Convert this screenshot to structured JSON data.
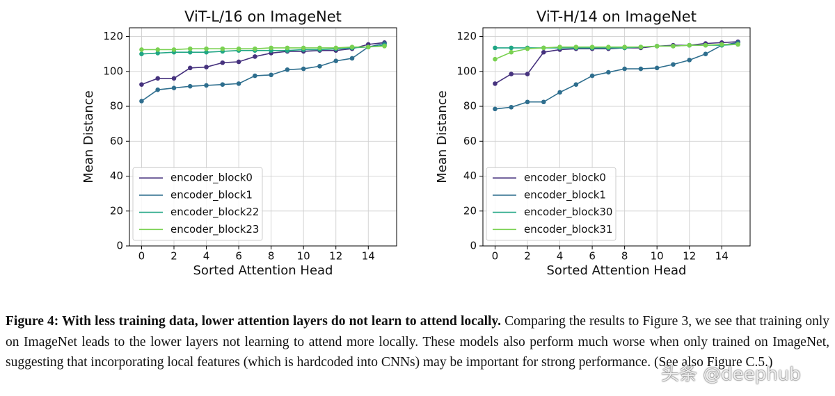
{
  "chart_data": [
    {
      "type": "line",
      "title": "ViT-L/16 on ImageNet",
      "xlabel": "Sorted Attention Head",
      "ylabel": "Mean Distance",
      "x": [
        0,
        1,
        2,
        3,
        4,
        5,
        6,
        7,
        8,
        9,
        10,
        11,
        12,
        13,
        14,
        15
      ],
      "xlim": [
        -0.75,
        15.75
      ],
      "ylim": [
        0,
        125
      ],
      "xticks": [
        0,
        2,
        4,
        6,
        8,
        10,
        12,
        14
      ],
      "yticks": [
        0,
        20,
        40,
        60,
        80,
        100,
        120
      ],
      "grid": true,
      "legend": "lower left",
      "series": [
        {
          "name": "encoder_block0",
          "color": "#46327e",
          "values": [
            92.5,
            96,
            96,
            102,
            102.5,
            105,
            105.5,
            108.5,
            110.5,
            111.5,
            111.5,
            112,
            112,
            113,
            115.5,
            116.5
          ]
        },
        {
          "name": "encoder_block1",
          "color": "#2e6e8e",
          "values": [
            83,
            89.5,
            90.5,
            91.5,
            92,
            92.5,
            93,
            97.5,
            98,
            101,
            101.5,
            103,
            106,
            107.5,
            114,
            116
          ]
        },
        {
          "name": "encoder_block22",
          "color": "#21a685",
          "values": [
            110,
            110.5,
            111,
            111,
            111,
            111.5,
            112,
            112,
            112,
            112,
            112.5,
            112.5,
            113,
            113.5,
            114,
            115
          ]
        },
        {
          "name": "encoder_block23",
          "color": "#7ad151",
          "values": [
            112.5,
            112.5,
            112.5,
            113,
            113,
            113,
            113,
            113,
            113.5,
            113.5,
            113.5,
            113.5,
            113.5,
            114,
            114,
            114.5
          ]
        }
      ]
    },
    {
      "type": "line",
      "title": "ViT-H/14 on ImageNet",
      "xlabel": "Sorted Attention Head",
      "ylabel": "Mean Distance",
      "x": [
        0,
        1,
        2,
        3,
        4,
        5,
        6,
        7,
        8,
        9,
        10,
        11,
        12,
        13,
        14,
        15
      ],
      "xlim": [
        -0.75,
        15.75
      ],
      "ylim": [
        0,
        125
      ],
      "xticks": [
        0,
        2,
        4,
        6,
        8,
        10,
        12,
        14
      ],
      "yticks": [
        0,
        20,
        40,
        60,
        80,
        100,
        120
      ],
      "grid": true,
      "legend": "lower left",
      "series": [
        {
          "name": "encoder_block0",
          "color": "#46327e",
          "values": [
            93,
            98.5,
            98.5,
            111,
            112.5,
            113,
            113,
            113,
            113.5,
            113.5,
            114.5,
            115,
            115,
            116,
            116.5,
            117
          ]
        },
        {
          "name": "encoder_block1",
          "color": "#2e6e8e",
          "values": [
            78.5,
            79.5,
            82.5,
            82.5,
            88,
            92.5,
            97.5,
            99.5,
            101.5,
            101.5,
            102,
            104,
            106.5,
            110,
            115,
            116.5
          ]
        },
        {
          "name": "encoder_block30",
          "color": "#21a685",
          "values": [
            113.5,
            113.5,
            113.5,
            113.5,
            113.5,
            113.5,
            113.5,
            113.5,
            113.5,
            114,
            114.5,
            114.5,
            115,
            115,
            115,
            115.5
          ]
        },
        {
          "name": "encoder_block31",
          "color": "#7ad151",
          "values": [
            107,
            111,
            113,
            113.5,
            114,
            114,
            114,
            114,
            114,
            114,
            114.5,
            114.5,
            115,
            115,
            115.5,
            115.5
          ]
        }
      ]
    }
  ],
  "caption": {
    "bold": "Figure 4: With less training data, lower attention layers do not learn to attend locally.",
    "text": "Comparing the results to Figure 3, we see that training only on ImageNet leads to the lower layers not learning to attend more locally. These models also perform much worse when only trained on ImageNet, suggesting that incorporating local features (which is hardcoded into CNNs) may be important for strong performance. (See also Figure C.5.)"
  },
  "watermark": "头条 @deephub"
}
